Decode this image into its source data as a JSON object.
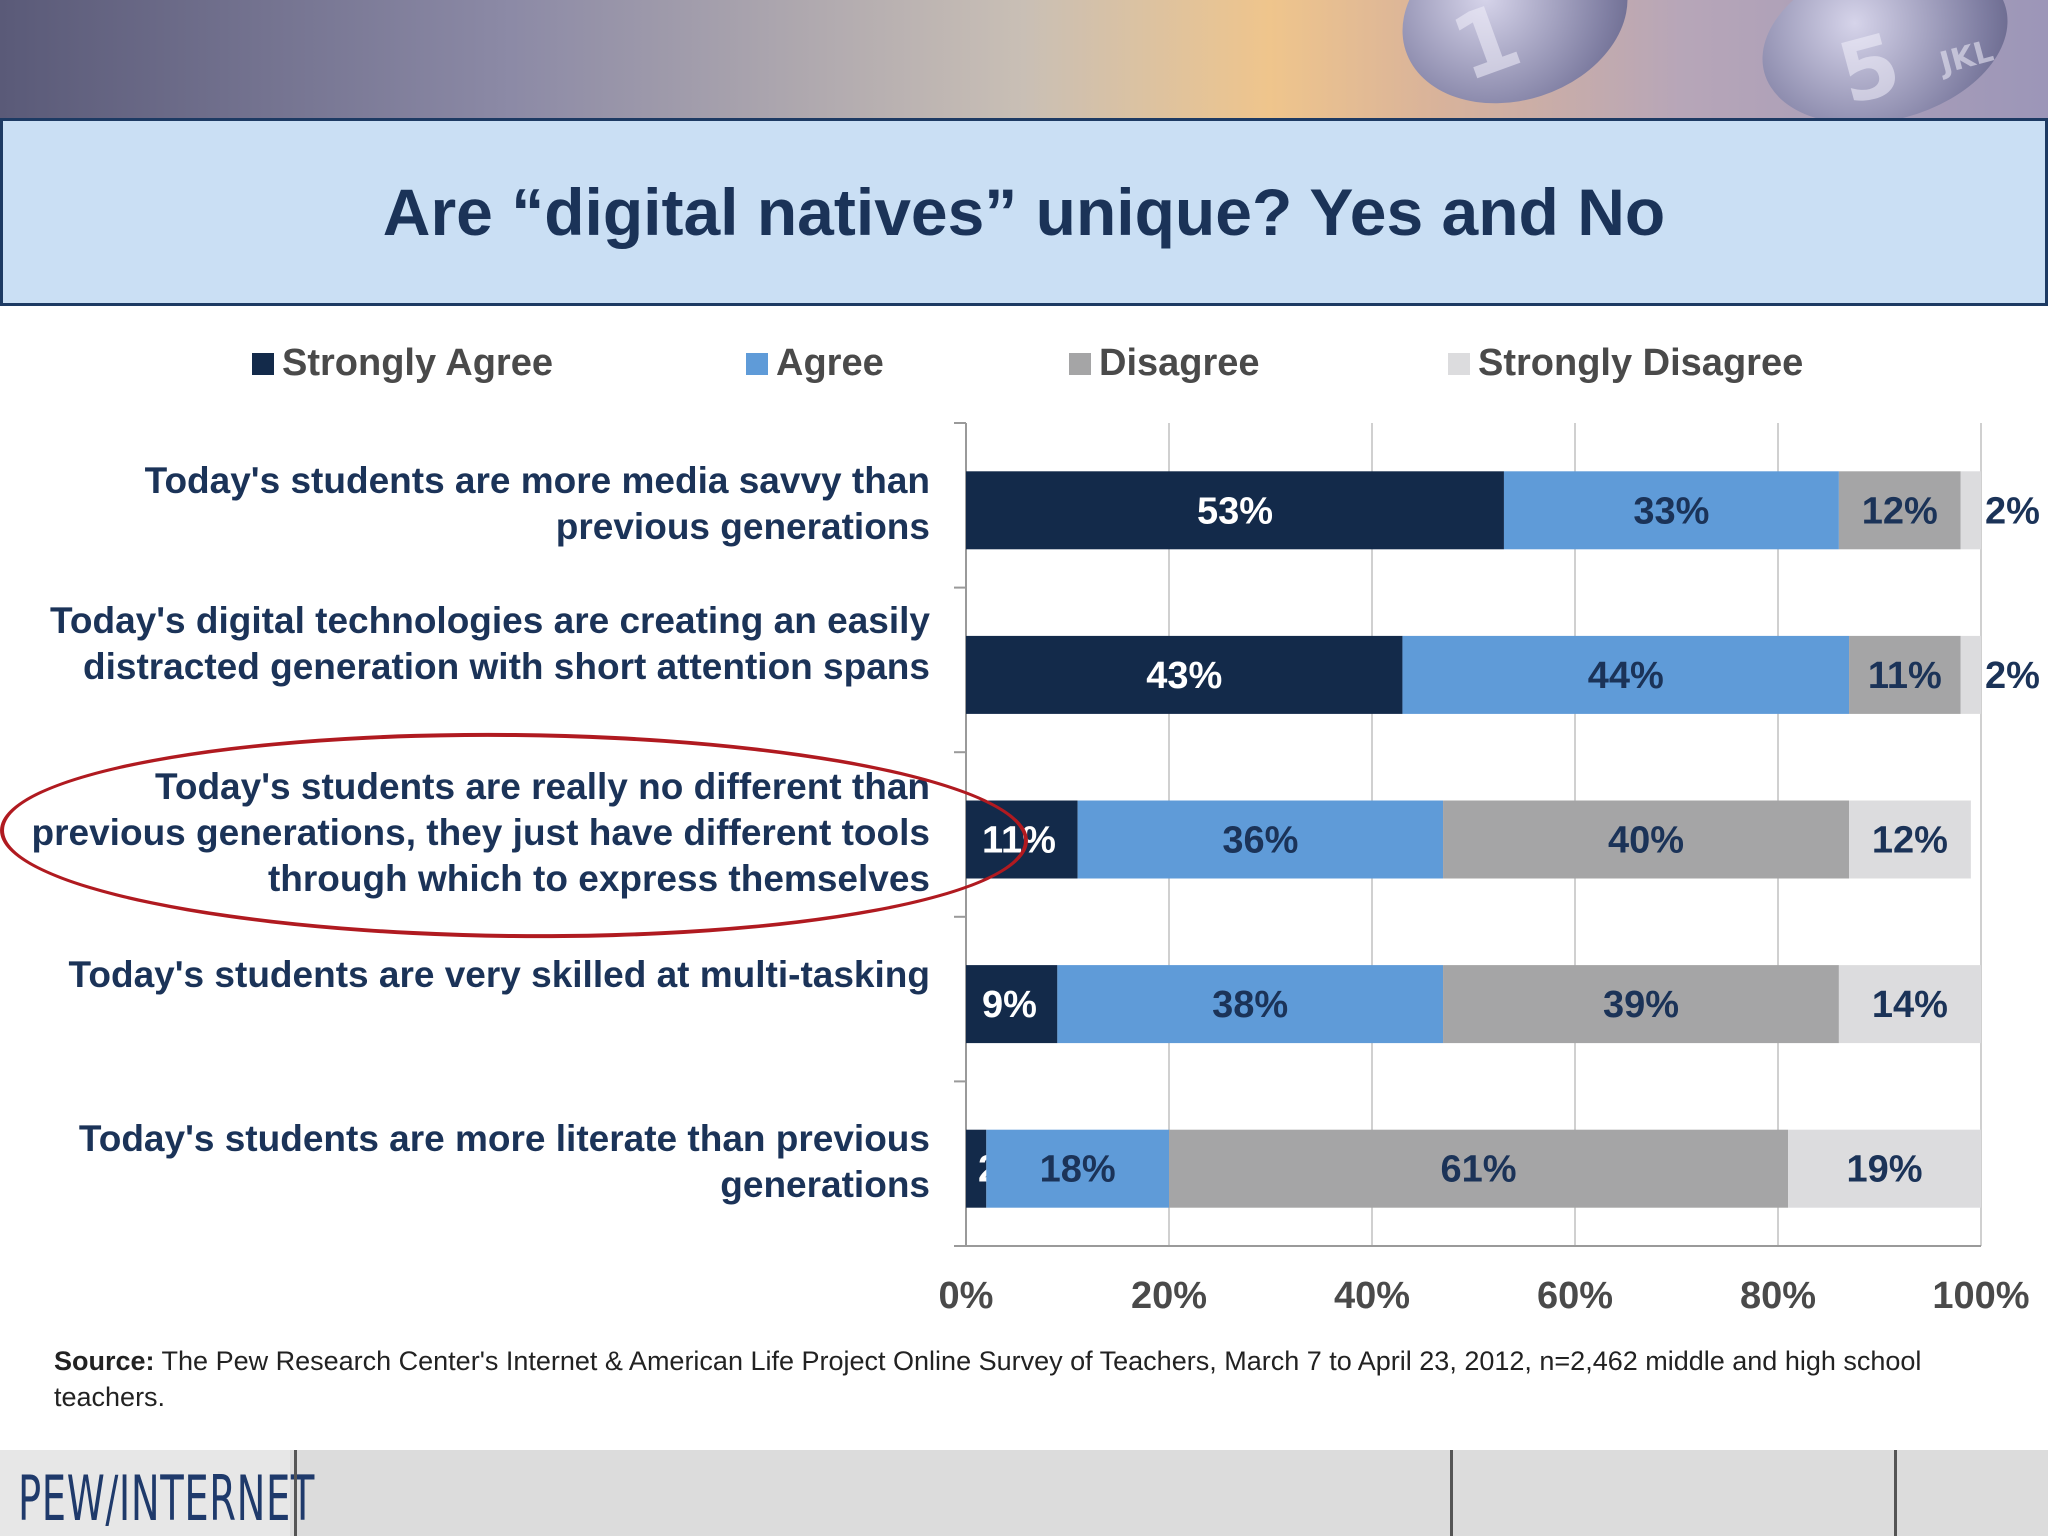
{
  "title": "Are “digital natives” unique?  Yes and No",
  "header_photo": {
    "key_glyph_1": "1",
    "key_glyph_2": "5",
    "key_sub_2": "JKL"
  },
  "source": {
    "label": "Source:",
    "text": " The Pew Research Center's Internet & American Life Project Online Survey of Teachers, March 7 to April 23, 2012, n=2,462 middle and high school teachers."
  },
  "footer": {
    "logo": "PEW/INTERNET"
  },
  "colors": {
    "strongly_agree": "#132a4a",
    "agree": "#5f9bd8",
    "disagree": "#a5a5a6",
    "strongly_disagree": "#dcdcde",
    "title_text": "#1b3358",
    "highlight": "#b01a20"
  },
  "highlight": {
    "category_index": 2,
    "shape": "ellipse"
  },
  "chart_data": {
    "type": "bar",
    "orientation": "horizontal",
    "stacked": true,
    "categories": [
      "Today's students are more media savvy than previous generations",
      "Today's digital technologies are creating an easily distracted generation with short attention spans",
      "Today's students are really no different than previous generations, they just have different tools through which to express themselves",
      "Today's students are very skilled at multi-tasking",
      "Today's students are more literate than previous generations"
    ],
    "series": [
      {
        "name": "Strongly Agree",
        "values": [
          53,
          43,
          11,
          9,
          2
        ],
        "labels": [
          "53%",
          "43%",
          "11%",
          "9%",
          "2%"
        ]
      },
      {
        "name": "Agree",
        "values": [
          33,
          44,
          36,
          38,
          18
        ],
        "labels": [
          "33%",
          "44%",
          "36%",
          "38%",
          "18%"
        ]
      },
      {
        "name": "Disagree",
        "values": [
          12,
          11,
          40,
          39,
          61
        ],
        "labels": [
          "12%",
          "11%",
          "40%",
          "39%",
          "61%"
        ]
      },
      {
        "name": "Strongly Disagree",
        "values": [
          2,
          2,
          12,
          14,
          19
        ],
        "labels": [
          "2%",
          "2%",
          "12%",
          "14%",
          "19%"
        ]
      }
    ],
    "xlim": [
      0,
      100
    ],
    "xticks": [
      "0%",
      "20%",
      "40%",
      "60%",
      "80%",
      "100%"
    ],
    "grid": "vertical",
    "legend": "top"
  }
}
